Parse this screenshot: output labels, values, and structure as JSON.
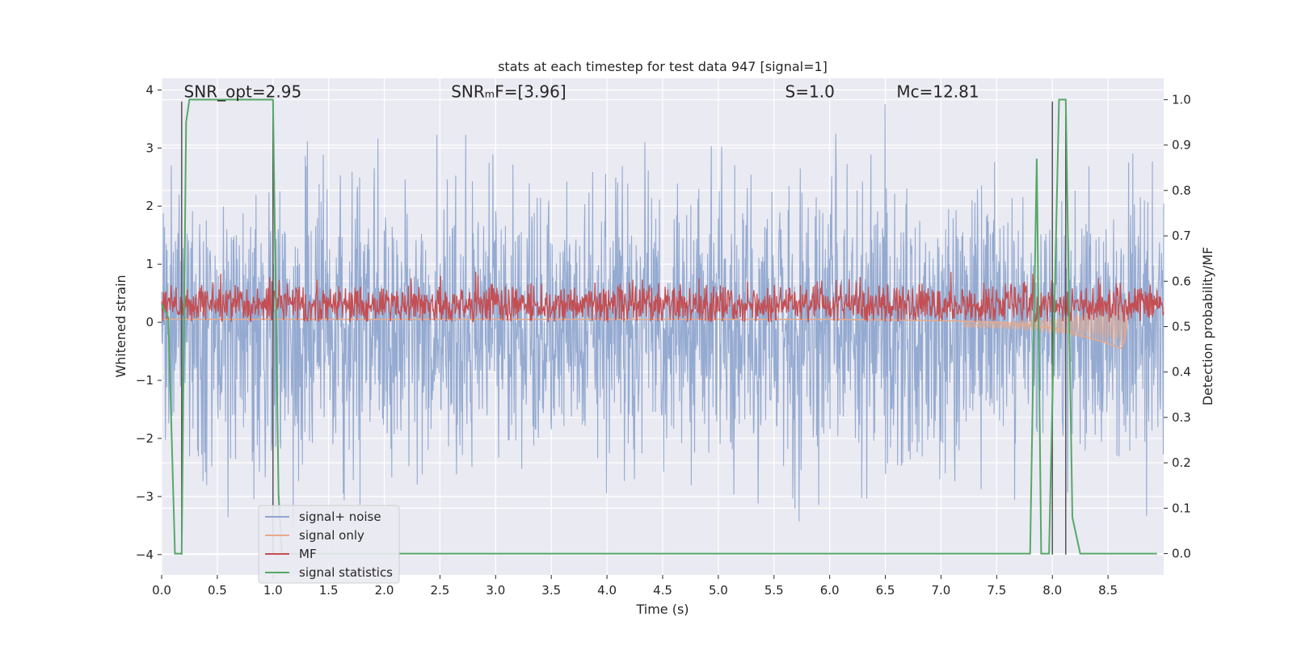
{
  "chart_data": {
    "type": "line",
    "title": "stats at each timestep for test data 947 [signal=1]",
    "xlabel": "Time (s)",
    "ylabel_left": "Whitened strain",
    "ylabel_right": "Detection probability/MF",
    "xlim": [
      0.0,
      9.0
    ],
    "ylim_left": [
      -4.35,
      4.2
    ],
    "ylim_right": [
      -0.047,
      1.047
    ],
    "x_ticks": [
      0.0,
      0.5,
      1.0,
      1.5,
      2.0,
      2.5,
      3.0,
      3.5,
      4.0,
      4.5,
      5.0,
      5.5,
      6.0,
      6.5,
      7.0,
      7.5,
      8.0,
      8.5
    ],
    "x_tick_labels": [
      "0.0",
      "0.5",
      "1.0",
      "1.5",
      "2.0",
      "2.5",
      "3.0",
      "3.5",
      "4.0",
      "4.5",
      "5.0",
      "5.5",
      "6.0",
      "6.5",
      "7.0",
      "7.5",
      "8.0",
      "8.5"
    ],
    "y_left_ticks": [
      4,
      3,
      2,
      1,
      0,
      -1,
      -2,
      -3,
      -4
    ],
    "y_left_tick_labels": [
      "4",
      "3",
      "2",
      "1",
      "0",
      "−1",
      "−2",
      "−3",
      "−4"
    ],
    "y_right_ticks": [
      1.0,
      0.9,
      0.8,
      0.7,
      0.6,
      0.5,
      0.4,
      0.3,
      0.2,
      0.1,
      0.0
    ],
    "y_right_tick_labels": [
      "1.0",
      "0.9",
      "0.8",
      "0.7",
      "0.6",
      "0.5",
      "0.4",
      "0.3",
      "0.2",
      "0.1",
      "0.0"
    ],
    "grid": true,
    "legend_placement": "lower-left",
    "annotations": [
      {
        "text": "SNR_opt=2.95",
        "x": 0.2,
        "y": 3.9
      },
      {
        "text": "SNRₘF=[3.96]",
        "x": 2.6,
        "y": 3.9
      },
      {
        "text": "S=1.0",
        "x": 5.6,
        "y": 3.9
      },
      {
        "text": "Mᴄ=12.81",
        "x": 6.6,
        "y": 3.9
      }
    ],
    "vertical_markers": [
      {
        "x": 0.18,
        "y_from": -4.0,
        "y_to": 3.8
      },
      {
        "x": 1.0,
        "y_from": -4.0,
        "y_to": 3.8
      },
      {
        "x": 8.0,
        "y_from": -4.0,
        "y_to": 3.8
      },
      {
        "x": 8.12,
        "y_from": -4.0,
        "y_to": 3.8
      }
    ],
    "series": [
      {
        "name": "signal+ noise",
        "axis": "left",
        "color": "#8fa6cf",
        "description_summary": "noisy whitened strain, amplitude roughly -3.6 to 3.8 around 0",
        "envelope": {
          "t_start": 0.0,
          "t_end": 9.0,
          "min": -3.6,
          "max": 3.8,
          "typical_spread": 1.4
        }
      },
      {
        "name": "signal only",
        "axis": "left",
        "color": "#e8a98a",
        "points": [
          [
            0.0,
            0.05
          ],
          [
            1.0,
            0.05
          ],
          [
            2.0,
            0.05
          ],
          [
            3.0,
            0.05
          ],
          [
            4.0,
            0.05
          ],
          [
            5.0,
            0.05
          ],
          [
            6.0,
            0.05
          ],
          [
            6.5,
            0.04
          ],
          [
            7.0,
            0.03
          ],
          [
            7.5,
            0.0
          ],
          [
            7.8,
            -0.05
          ],
          [
            8.0,
            -0.1
          ],
          [
            8.2,
            -0.2
          ],
          [
            8.4,
            -0.3
          ],
          [
            8.55,
            -0.4
          ],
          [
            8.62,
            -0.45
          ],
          [
            8.65,
            -0.3
          ],
          [
            8.67,
            0.05
          ]
        ]
      },
      {
        "name": "MF",
        "axis": "left",
        "color": "#c44e52",
        "envelope": {
          "t_start": 0.0,
          "t_end": 9.0,
          "min": 0.0,
          "max": 0.92,
          "mean": 0.3
        }
      },
      {
        "name": "signal statistics",
        "axis": "right",
        "color": "#55a868",
        "points": [
          [
            0.0,
            0.55
          ],
          [
            0.06,
            0.52
          ],
          [
            0.12,
            0.0
          ],
          [
            0.18,
            0.0
          ],
          [
            0.22,
            0.95
          ],
          [
            0.25,
            1.0
          ],
          [
            0.5,
            1.0
          ],
          [
            0.75,
            1.0
          ],
          [
            1.0,
            1.0
          ],
          [
            1.05,
            0.13
          ],
          [
            1.08,
            0.0
          ],
          [
            1.5,
            0.0
          ],
          [
            2.0,
            0.0
          ],
          [
            3.0,
            0.0
          ],
          [
            4.0,
            0.0
          ],
          [
            5.0,
            0.0
          ],
          [
            6.0,
            0.0
          ],
          [
            7.0,
            0.0
          ],
          [
            7.5,
            0.0
          ],
          [
            7.8,
            0.0
          ],
          [
            7.86,
            0.87
          ],
          [
            7.9,
            0.0
          ],
          [
            7.97,
            0.0
          ],
          [
            8.06,
            1.0
          ],
          [
            8.12,
            1.0
          ],
          [
            8.18,
            0.08
          ],
          [
            8.25,
            0.0
          ],
          [
            8.5,
            0.0
          ],
          [
            8.94,
            0.0
          ]
        ]
      }
    ]
  },
  "legend": {
    "items": [
      {
        "label": "signal+ noise",
        "color": "#8fa6cf"
      },
      {
        "label": "signal only",
        "color": "#e8a98a"
      },
      {
        "label": "MF",
        "color": "#c44e52"
      },
      {
        "label": "signal statistics",
        "color": "#55a868"
      }
    ]
  },
  "colors": {
    "plot_background": "#eaeaf2",
    "grid": "#ffffff",
    "marker_line": "#555555"
  }
}
